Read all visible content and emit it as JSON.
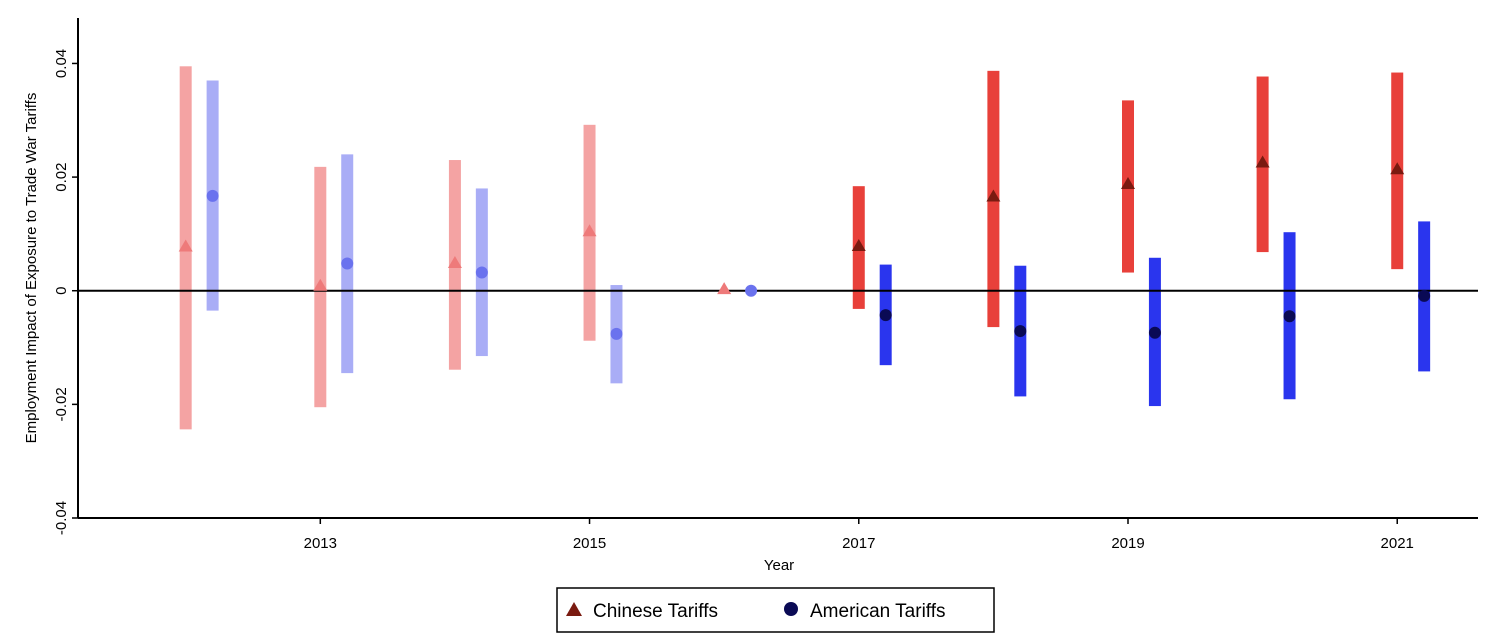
{
  "chart_data": {
    "type": "scatter",
    "title": "",
    "xlabel": "Year",
    "ylabel": "Employment Impact of Exposure to Trade War Tariffs",
    "xlim": [
      2011.2,
      2021.6
    ],
    "ylim": [
      -0.04,
      0.048
    ],
    "xticks": [
      2013,
      2015,
      2017,
      2019,
      2021
    ],
    "xtick_labels": [
      "2013",
      "2015",
      "2017",
      "2019",
      "2021"
    ],
    "yticks": [
      -0.04,
      -0.02,
      0,
      0.02,
      0.04
    ],
    "ytick_labels": [
      "-0.04",
      "-0.02",
      "0",
      "0.02",
      "0.04"
    ],
    "reference_line_y": 0,
    "grid": false,
    "legend_position": "bottom-center",
    "series": [
      {
        "name": "Chinese Tariffs",
        "marker": "triangle",
        "color_pre": "#f4a3a3",
        "color_post": "#e8403a",
        "marker_color_pre": "#ee7a7a",
        "marker_color_post": "#7a1a10",
        "x": [
          2012,
          2013,
          2014,
          2015,
          2016,
          2017,
          2018,
          2019,
          2020,
          2021
        ],
        "estimate": [
          0.0077,
          0.0008,
          0.0048,
          0.0104,
          0.0002,
          0.0078,
          0.0165,
          0.0187,
          0.0225,
          0.0213
        ],
        "ci_low": [
          -0.0244,
          -0.0205,
          -0.0139,
          -0.0088,
          null,
          -0.0032,
          -0.0064,
          0.0032,
          0.0068,
          0.0038
        ],
        "ci_high": [
          0.0395,
          0.0218,
          0.023,
          0.0292,
          null,
          0.0184,
          0.0387,
          0.0335,
          0.0377,
          0.0384
        ],
        "period": [
          "pre",
          "pre",
          "pre",
          "pre",
          "pre",
          "post",
          "post",
          "post",
          "post",
          "post"
        ]
      },
      {
        "name": "American Tariffs",
        "marker": "circle",
        "color_pre": "#a9adf6",
        "color_post": "#2a35ee",
        "marker_color_pre": "#6a72ee",
        "marker_color_post": "#0a0a55",
        "x": [
          2012.2,
          2013.2,
          2014.2,
          2015.2,
          2016.2,
          2017.2,
          2018.2,
          2019.2,
          2020.2,
          2021.2
        ],
        "estimate": [
          0.0167,
          0.0048,
          0.0032,
          -0.0076,
          0.0,
          -0.0043,
          -0.0071,
          -0.0074,
          -0.0045,
          -0.0009
        ],
        "ci_low": [
          -0.0035,
          -0.0145,
          -0.0115,
          -0.0163,
          null,
          -0.0131,
          -0.0186,
          -0.0203,
          -0.0191,
          -0.0142
        ],
        "ci_high": [
          0.037,
          0.024,
          0.018,
          0.001,
          null,
          0.0046,
          0.0044,
          0.0058,
          0.0103,
          0.0122
        ],
        "period": [
          "pre",
          "pre",
          "pre",
          "pre",
          "pre",
          "post",
          "post",
          "post",
          "post",
          "post"
        ]
      }
    ]
  }
}
